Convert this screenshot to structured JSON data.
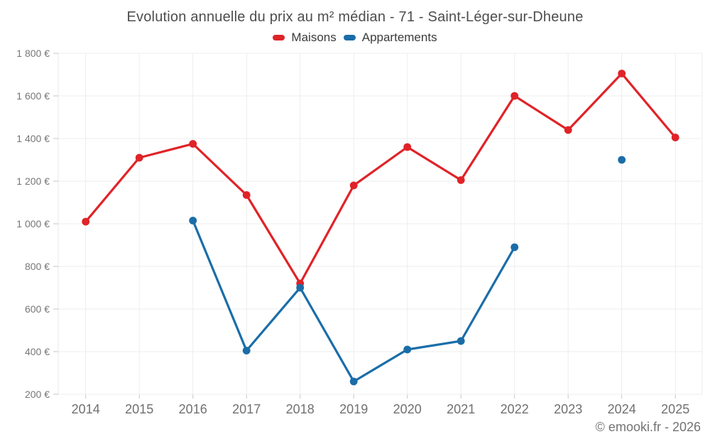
{
  "footer": {
    "credit": "© emooki.fr - 2026"
  },
  "chart_data": {
    "type": "line",
    "title": "Evolution annuelle du prix au m² médian - 71 - Saint-Léger-sur-Dheune",
    "xlabel": "",
    "ylabel": "",
    "categories": [
      "2014",
      "2015",
      "2016",
      "2017",
      "2018",
      "2019",
      "2020",
      "2021",
      "2022",
      "2023",
      "2024",
      "2025"
    ],
    "series": [
      {
        "name": "Maisons",
        "color": "#e02328",
        "values": [
          1010,
          1310,
          1375,
          1135,
          720,
          1180,
          1360,
          1205,
          1600,
          1440,
          1705,
          1405
        ]
      },
      {
        "name": "Appartements",
        "color": "#1a6da8",
        "values": [
          null,
          null,
          1015,
          405,
          700,
          260,
          410,
          450,
          890,
          null,
          1300,
          null
        ]
      }
    ],
    "ylim": [
      200,
      1800
    ],
    "yticks": [
      {
        "value": 1800,
        "label": "1 800 €"
      },
      {
        "value": 1600,
        "label": "1 600 €"
      },
      {
        "value": 1400,
        "label": "1 400 €"
      },
      {
        "value": 1200,
        "label": "1 200 €"
      },
      {
        "value": 1000,
        "label": "1 000 €"
      },
      {
        "value": 800,
        "label": "800 €"
      },
      {
        "value": 600,
        "label": "600 €"
      },
      {
        "value": 400,
        "label": "400 €"
      },
      {
        "value": 200,
        "label": "200 €"
      }
    ],
    "grid": true,
    "legend_position": "top",
    "marker": "circle",
    "currency_suffix": "€"
  }
}
